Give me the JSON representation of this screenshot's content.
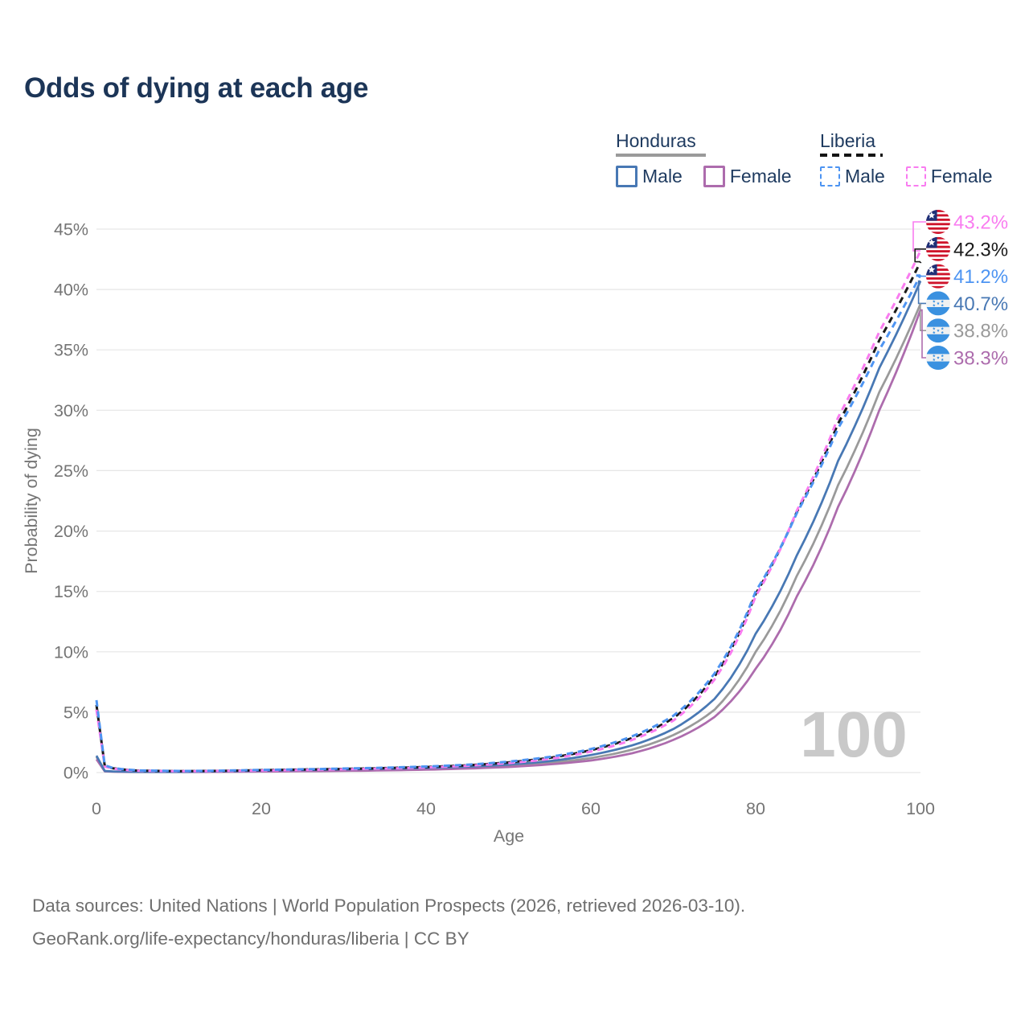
{
  "title": "Odds of dying at each age",
  "legend": {
    "groups": [
      {
        "name": "Honduras",
        "line_style": "solid",
        "underline_color": "#9a9a9a",
        "items": [
          {
            "label": "Male",
            "color": "#4878b4",
            "dash": false
          },
          {
            "label": "Female",
            "color": "#ad6cad",
            "dash": false
          }
        ]
      },
      {
        "name": "Liberia",
        "line_style": "dashed",
        "underline_color": "#141414",
        "items": [
          {
            "label": "Male",
            "color": "#4d94f2",
            "dash": true
          },
          {
            "label": "Female",
            "color": "#f97cf0",
            "dash": true
          }
        ]
      }
    ]
  },
  "chart_data": {
    "type": "line",
    "title": "Odds of dying at each age",
    "xlabel": "Age",
    "ylabel": "Probability of dying",
    "xlim": [
      0,
      100
    ],
    "ylim": [
      0,
      45
    ],
    "x_ticks": [
      0,
      20,
      40,
      60,
      80,
      100
    ],
    "y_ticks": [
      0,
      5,
      10,
      15,
      20,
      25,
      30,
      35,
      40,
      45
    ],
    "y_tick_suffix": "%",
    "grid": "horizontal",
    "ages": [
      0,
      1,
      2,
      5,
      10,
      15,
      20,
      25,
      30,
      35,
      40,
      45,
      50,
      55,
      60,
      65,
      70,
      75,
      80,
      85,
      90,
      95,
      100
    ],
    "series": [
      {
        "id": "honduras-both",
        "name": "Honduras (both sexes)",
        "country": "Honduras",
        "sex": "both",
        "color": "#9a9a9a",
        "dash": false,
        "values": [
          1.3,
          0.11,
          0.08,
          0.05,
          0.05,
          0.08,
          0.12,
          0.16,
          0.2,
          0.24,
          0.3,
          0.4,
          0.55,
          0.8,
          1.2,
          1.9,
          3.1,
          5.2,
          10.0,
          16.3,
          23.8,
          31.5,
          38.8
        ]
      },
      {
        "id": "honduras-female",
        "name": "Honduras Female",
        "country": "Honduras",
        "sex": "female",
        "color": "#ad6cad",
        "dash": false,
        "values": [
          1.1,
          0.1,
          0.07,
          0.045,
          0.045,
          0.06,
          0.08,
          0.11,
          0.14,
          0.18,
          0.24,
          0.33,
          0.46,
          0.68,
          1.0,
          1.6,
          2.7,
          4.6,
          8.6,
          14.6,
          22.0,
          30.0,
          38.3
        ]
      },
      {
        "id": "honduras-male",
        "name": "Honduras Male",
        "country": "Honduras",
        "sex": "male",
        "color": "#4878b4",
        "dash": false,
        "values": [
          1.4,
          0.13,
          0.09,
          0.06,
          0.06,
          0.1,
          0.16,
          0.21,
          0.26,
          0.31,
          0.38,
          0.48,
          0.66,
          0.95,
          1.45,
          2.25,
          3.6,
          6.1,
          11.5,
          18.0,
          25.8,
          33.5,
          40.7
        ]
      },
      {
        "id": "liberia-both",
        "name": "Liberia (both sexes)",
        "country": "Liberia",
        "sex": "both",
        "color": "#1a1a1a",
        "dash": true,
        "values": [
          5.6,
          0.55,
          0.35,
          0.16,
          0.12,
          0.14,
          0.2,
          0.25,
          0.3,
          0.37,
          0.46,
          0.6,
          0.84,
          1.22,
          1.85,
          2.86,
          4.5,
          7.95,
          14.8,
          21.6,
          28.9,
          35.8,
          42.3
        ]
      },
      {
        "id": "liberia-female",
        "name": "Liberia Female",
        "country": "Liberia",
        "sex": "female",
        "color": "#f97cf0",
        "dash": true,
        "values": [
          5.2,
          0.5,
          0.32,
          0.15,
          0.11,
          0.13,
          0.17,
          0.22,
          0.27,
          0.33,
          0.42,
          0.56,
          0.78,
          1.13,
          1.74,
          2.7,
          4.3,
          7.7,
          14.6,
          21.7,
          29.4,
          36.5,
          43.2
        ]
      },
      {
        "id": "liberia-male",
        "name": "Liberia Male",
        "country": "Liberia",
        "sex": "male",
        "color": "#4d94f2",
        "dash": true,
        "values": [
          6.0,
          0.6,
          0.38,
          0.18,
          0.13,
          0.16,
          0.22,
          0.27,
          0.33,
          0.4,
          0.5,
          0.65,
          0.9,
          1.3,
          1.95,
          3.0,
          4.7,
          8.2,
          15.0,
          21.5,
          28.5,
          35.0,
          41.2
        ]
      }
    ],
    "end_labels": [
      {
        "series": "liberia-female",
        "text": "43.2%",
        "value": 43.2,
        "color": "#f97cf0",
        "flag": "liberia"
      },
      {
        "series": "liberia-both",
        "text": "42.3%",
        "value": 42.3,
        "color": "#1a1a1a",
        "flag": "liberia"
      },
      {
        "series": "liberia-male",
        "text": "41.2%",
        "value": 41.2,
        "color": "#4d94f2",
        "flag": "liberia"
      },
      {
        "series": "honduras-male",
        "text": "40.7%",
        "value": 40.7,
        "color": "#4878b4",
        "flag": "honduras"
      },
      {
        "series": "honduras-both",
        "text": "38.8%",
        "value": 38.8,
        "color": "#9a9a9a",
        "flag": "honduras"
      },
      {
        "series": "honduras-female",
        "text": "38.3%",
        "value": 38.3,
        "color": "#ad6cad",
        "flag": "honduras"
      }
    ],
    "watermark": "100",
    "legend_position": "top-right"
  },
  "flag_colors": {
    "liberia_red": "#cf142b",
    "liberia_blue": "#1f3178",
    "honduras_blue": "#3a91e0",
    "honduras_white": "#f0f1f1"
  },
  "footer": {
    "line1": "Data sources: United Nations | World Population Prospects (2026, retrieved 2026-03-10).",
    "line2": "GeoRank.org/life-expectancy/honduras/liberia | CC BY"
  }
}
